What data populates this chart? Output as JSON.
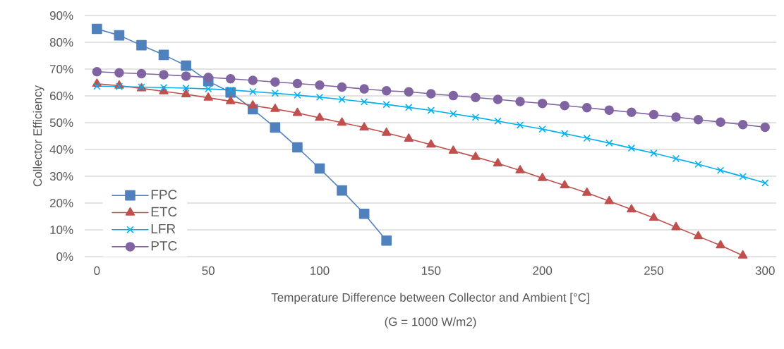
{
  "chart_data": {
    "type": "line",
    "ylabel": "Collector Efficiency",
    "xlabel": "Temperature Difference between Collector and Ambient [°C]",
    "annotations": [
      "(G = 1000 W/m2)"
    ],
    "xlim": [
      -5.5,
      305
    ],
    "xticks": [
      0,
      50,
      100,
      150,
      200,
      250,
      300
    ],
    "ylim": [
      0,
      90
    ],
    "yticks": [
      {
        "value": 0,
        "label": "0%"
      },
      {
        "value": 10,
        "label": "10%"
      },
      {
        "value": 20,
        "label": "20%"
      },
      {
        "value": 30,
        "label": "30%"
      },
      {
        "value": 40,
        "label": "40%"
      },
      {
        "value": 50,
        "label": "50%"
      },
      {
        "value": 60,
        "label": "60%"
      },
      {
        "value": 70,
        "label": "70%"
      },
      {
        "value": 80,
        "label": "80%"
      },
      {
        "value": 90,
        "label": "90%"
      }
    ],
    "grid": "y",
    "legend": "bottom left",
    "line_style": "solid",
    "series": [
      {
        "name": "FPC",
        "color": "#4f81bd",
        "marker": "square",
        "x": [
          0,
          10,
          20,
          30,
          40,
          50,
          60,
          70,
          80,
          90,
          100,
          110,
          120,
          130
        ],
        "values": [
          85.0,
          82.6,
          78.9,
          75.3,
          71.3,
          65.5,
          61.3,
          55.0,
          48.2,
          40.8,
          32.9,
          24.7,
          16.0,
          6.0
        ]
      },
      {
        "name": "ETC",
        "color": "#c0504d",
        "marker": "triangle",
        "x": [
          0,
          10,
          20,
          30,
          40,
          50,
          60,
          70,
          80,
          90,
          100,
          110,
          120,
          130,
          140,
          150,
          160,
          170,
          180,
          190,
          200,
          210,
          220,
          230,
          240,
          250,
          260,
          270,
          280,
          290
        ],
        "values": [
          64.5,
          63.8,
          62.8,
          61.7,
          60.6,
          59.3,
          58.0,
          56.4,
          55.1,
          53.6,
          51.8,
          50.0,
          48.2,
          46.2,
          44.0,
          41.8,
          39.5,
          37.2,
          34.8,
          32.2,
          29.3,
          26.6,
          23.8,
          20.7,
          17.6,
          14.5,
          11.0,
          7.6,
          4.2,
          0.4
        ]
      },
      {
        "name": "LFR",
        "color": "#00b0f0",
        "marker": "cross",
        "x": [
          0,
          10,
          20,
          30,
          40,
          50,
          60,
          70,
          80,
          90,
          100,
          110,
          120,
          130,
          140,
          150,
          160,
          170,
          180,
          190,
          200,
          210,
          220,
          230,
          240,
          250,
          260,
          270,
          280,
          290,
          300
        ],
        "values": [
          63.6,
          63.5,
          63.3,
          63.1,
          62.9,
          62.6,
          62.2,
          61.6,
          61.0,
          60.3,
          59.5,
          58.7,
          57.8,
          56.8,
          55.7,
          54.6,
          53.3,
          52.0,
          50.6,
          49.1,
          47.6,
          45.9,
          44.2,
          42.4,
          40.5,
          38.6,
          36.6,
          34.5,
          32.2,
          29.9,
          27.5
        ]
      },
      {
        "name": "PTC",
        "color": "#8064a2",
        "marker": "circle",
        "x": [
          0,
          10,
          20,
          30,
          40,
          50,
          60,
          70,
          80,
          90,
          100,
          110,
          120,
          130,
          140,
          150,
          160,
          170,
          180,
          190,
          200,
          210,
          220,
          230,
          240,
          250,
          260,
          270,
          280,
          290,
          300
        ],
        "values": [
          69.0,
          68.6,
          68.3,
          67.9,
          67.4,
          66.9,
          66.4,
          65.8,
          65.2,
          64.6,
          64.0,
          63.3,
          62.6,
          61.9,
          61.5,
          60.8,
          60.1,
          59.4,
          58.7,
          57.9,
          57.2,
          56.4,
          55.6,
          54.7,
          53.9,
          53.0,
          52.1,
          51.1,
          50.2,
          49.3,
          48.3
        ]
      }
    ]
  }
}
